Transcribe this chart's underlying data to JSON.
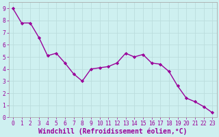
{
  "x": [
    0,
    1,
    2,
    3,
    4,
    5,
    6,
    7,
    8,
    9,
    10,
    11,
    12,
    13,
    14,
    15,
    16,
    17,
    18,
    19,
    20,
    21,
    22,
    23
  ],
  "y": [
    9.0,
    7.8,
    7.8,
    6.6,
    5.1,
    5.3,
    4.5,
    3.6,
    3.0,
    4.0,
    4.1,
    4.2,
    4.5,
    5.3,
    5.0,
    5.2,
    4.5,
    4.4,
    3.8,
    2.6,
    1.6,
    1.3,
    0.9,
    0.4
  ],
  "line_color": "#990099",
  "marker": "D",
  "marker_size": 2.2,
  "background_color": "#cef0f0",
  "grid_color": "#bbdddd",
  "spine_color": "#aaaaaa",
  "xlabel": "Windchill (Refroidissement éolien,°C)",
  "xlabel_color": "#990099",
  "tick_color": "#990099",
  "xlim": [
    -0.5,
    23.5
  ],
  "ylim": [
    0,
    9.5
  ],
  "yticks": [
    0,
    1,
    2,
    3,
    4,
    5,
    6,
    7,
    8,
    9
  ],
  "xticks": [
    0,
    1,
    2,
    3,
    4,
    5,
    6,
    7,
    8,
    9,
    10,
    11,
    12,
    13,
    14,
    15,
    16,
    17,
    18,
    19,
    20,
    21,
    22,
    23
  ],
  "tick_fontsize": 5.8,
  "xlabel_fontsize": 7.0,
  "linewidth": 1.0
}
